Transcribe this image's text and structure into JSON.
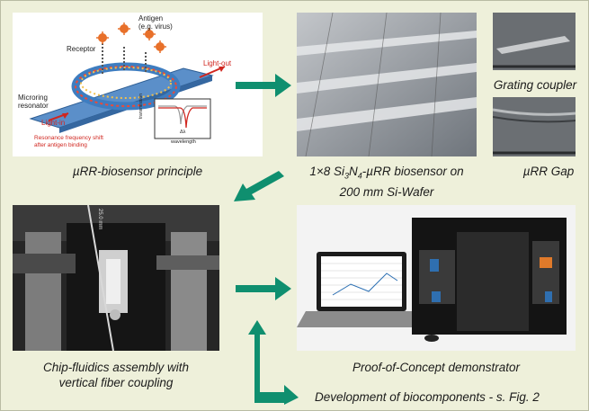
{
  "principle": {
    "caption": "µRR-biosensor principle",
    "labels": {
      "antigen_line1": "Antigen",
      "antigen_line2": "(e.g. virus)",
      "receptor": "Receptor",
      "light_out": "Light-out",
      "microring_line1": "Microring",
      "microring_line2": "resonator",
      "light_in": "Light-in",
      "shift_line1": "Resonance frequency shift",
      "shift_line2": "after antigen binding",
      "transmission": "transmission",
      "wavelength": "wavelength",
      "delta": "Δλ"
    }
  },
  "wafer": {
    "caption_prefix": "1×8 Si",
    "caption_sub1": "3",
    "caption_mid": "N",
    "caption_sub2": "4",
    "caption_suffix": "-µRR biosensor on",
    "caption_line2": "200 mm Si-Wafer"
  },
  "grating": {
    "caption": "Grating coupler"
  },
  "gap": {
    "caption": "µRR Gap"
  },
  "chip": {
    "caption_line1": "Chip-fluidics assembly with",
    "caption_line2": "vertical fiber coupling",
    "scale_label": "25.0 mm"
  },
  "demo": {
    "caption": "Proof-of-Concept demonstrator"
  },
  "bio": {
    "caption": "Development of biocomponents - s. Fig. 2"
  },
  "colors": {
    "arrow": "#0f8f6f",
    "background": "#eef0da",
    "waveguide": "#3d7fc1",
    "label_red": "#d0261f"
  }
}
